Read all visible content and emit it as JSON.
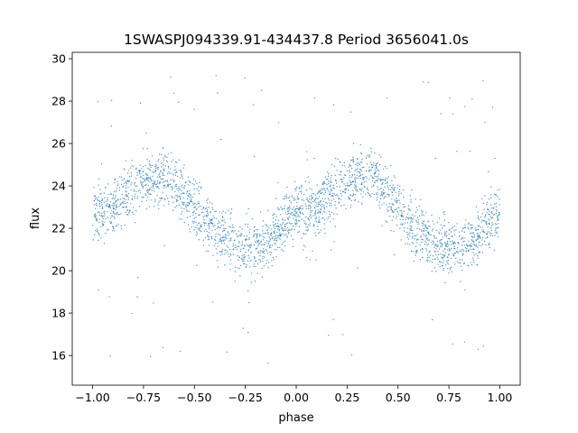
{
  "chart_data": {
    "type": "scatter",
    "title": "1SWASPJ094339.91-434437.8 Period 3656041.0s",
    "xlabel": "phase",
    "ylabel": "flux",
    "xlim": [
      -1.1,
      1.1
    ],
    "ylim": [
      14.6,
      30.3
    ],
    "xticks": [
      -1.0,
      -0.75,
      -0.5,
      -0.25,
      0.0,
      0.25,
      0.5,
      0.75,
      1.0
    ],
    "xtick_labels": [
      "−1.00",
      "−0.75",
      "−0.50",
      "−0.25",
      "0.00",
      "0.25",
      "0.50",
      "0.75",
      "1.00"
    ],
    "yticks": [
      16,
      18,
      20,
      22,
      24,
      26,
      28,
      30
    ],
    "ytick_labels": [
      "16",
      "18",
      "20",
      "22",
      "24",
      "26",
      "28",
      "30"
    ],
    "grid": false,
    "marker_color": "#1f77b4",
    "series": [
      {
        "phase": [
          -1.0,
          -0.95,
          -0.9,
          -0.85,
          -0.8,
          -0.75,
          -0.7,
          -0.65,
          -0.6,
          -0.55,
          -0.5,
          -0.45,
          -0.4,
          -0.35,
          -0.3,
          -0.25,
          -0.2,
          -0.15,
          -0.1,
          -0.05,
          0.0,
          0.05,
          0.1,
          0.15,
          0.2,
          0.25,
          0.3,
          0.35,
          0.4,
          0.45,
          0.5,
          0.55,
          0.6,
          0.65,
          0.7,
          0.75,
          0.8,
          0.85,
          0.9,
          0.95,
          1.0
        ],
        "flux_mean": [
          22.8,
          22.6,
          23.0,
          23.4,
          23.9,
          24.1,
          24.3,
          24.5,
          24.2,
          23.6,
          23.0,
          22.4,
          21.9,
          21.5,
          21.2,
          21.1,
          21.2,
          21.3,
          21.8,
          22.4,
          22.8,
          22.6,
          23.0,
          23.4,
          23.9,
          24.1,
          24.3,
          24.5,
          24.2,
          23.6,
          23.0,
          22.4,
          21.9,
          21.5,
          21.2,
          21.1,
          21.2,
          21.3,
          21.8,
          22.4,
          22.8
        ],
        "flux_spread": 1.2
      }
    ]
  }
}
